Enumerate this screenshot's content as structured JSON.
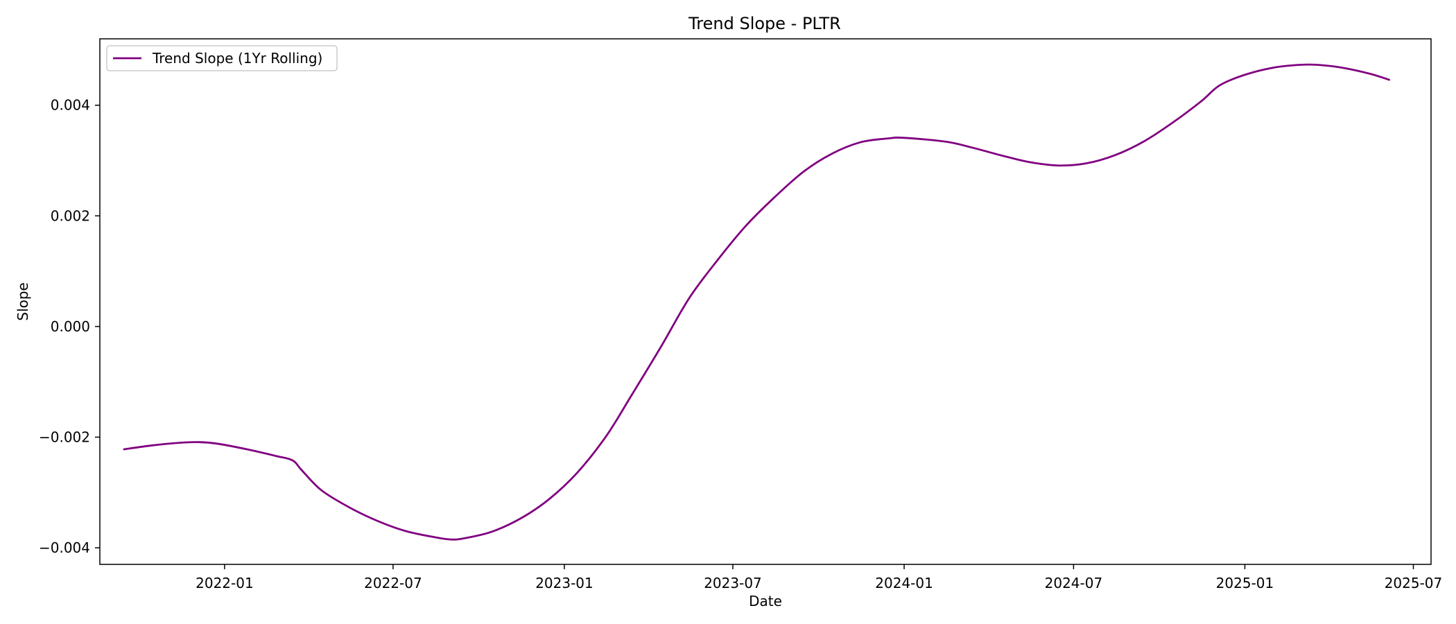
{
  "chart_data": {
    "type": "line",
    "title": "Trend Slope - PLTR",
    "xlabel": "Date",
    "ylabel": "Slope",
    "x_axis_type": "date",
    "xlim": [
      "2021-08-20",
      "2025-07-20"
    ],
    "ylim": [
      -0.0043,
      0.0052
    ],
    "x_ticks": [
      {
        "date": "2022-01-01",
        "label": "2022-01"
      },
      {
        "date": "2022-07-01",
        "label": "2022-07"
      },
      {
        "date": "2023-01-01",
        "label": "2023-01"
      },
      {
        "date": "2023-07-01",
        "label": "2023-07"
      },
      {
        "date": "2024-01-01",
        "label": "2024-01"
      },
      {
        "date": "2024-07-01",
        "label": "2024-07"
      },
      {
        "date": "2025-01-01",
        "label": "2025-01"
      },
      {
        "date": "2025-07-01",
        "label": "2025-07"
      }
    ],
    "y_ticks": [
      {
        "value": -0.004,
        "label": "−0.004"
      },
      {
        "value": -0.002,
        "label": "−0.002"
      },
      {
        "value": 0.0,
        "label": "0.000"
      },
      {
        "value": 0.002,
        "label": "0.002"
      },
      {
        "value": 0.004,
        "label": "0.004"
      }
    ],
    "grid": false,
    "legend": {
      "placement": "top-left"
    },
    "series": [
      {
        "name": "Trend Slope (1Yr Rolling)",
        "color": "#800080",
        "points": [
          {
            "x": "2021-09-15",
            "y": -0.00222
          },
          {
            "x": "2021-10-15",
            "y": -0.00215
          },
          {
            "x": "2021-11-15",
            "y": -0.0021
          },
          {
            "x": "2021-12-05",
            "y": -0.00209
          },
          {
            "x": "2021-12-25",
            "y": -0.00212
          },
          {
            "x": "2022-01-25",
            "y": -0.00222
          },
          {
            "x": "2022-02-25",
            "y": -0.00234
          },
          {
            "x": "2022-03-15",
            "y": -0.00242
          },
          {
            "x": "2022-03-25",
            "y": -0.0026
          },
          {
            "x": "2022-04-15",
            "y": -0.00296
          },
          {
            "x": "2022-05-15",
            "y": -0.00327
          },
          {
            "x": "2022-06-15",
            "y": -0.00352
          },
          {
            "x": "2022-07-15",
            "y": -0.0037
          },
          {
            "x": "2022-08-15",
            "y": -0.00381
          },
          {
            "x": "2022-09-01",
            "y": -0.00385
          },
          {
            "x": "2022-09-15",
            "y": -0.00383
          },
          {
            "x": "2022-10-15",
            "y": -0.00371
          },
          {
            "x": "2022-11-15",
            "y": -0.00347
          },
          {
            "x": "2022-12-15",
            "y": -0.00313
          },
          {
            "x": "2023-01-15",
            "y": -0.00264
          },
          {
            "x": "2023-02-15",
            "y": -0.00198
          },
          {
            "x": "2023-03-15",
            "y": -0.00122
          },
          {
            "x": "2023-04-15",
            "y": -0.00036
          },
          {
            "x": "2023-05-15",
            "y": 0.00051
          },
          {
            "x": "2023-06-15",
            "y": 0.00121
          },
          {
            "x": "2023-07-15",
            "y": 0.00182
          },
          {
            "x": "2023-08-15",
            "y": 0.00234
          },
          {
            "x": "2023-09-15",
            "y": 0.0028
          },
          {
            "x": "2023-10-15",
            "y": 0.00312
          },
          {
            "x": "2023-11-15",
            "y": 0.00333
          },
          {
            "x": "2023-12-15",
            "y": 0.0034
          },
          {
            "x": "2024-01-01",
            "y": 0.00341
          },
          {
            "x": "2024-02-15",
            "y": 0.00334
          },
          {
            "x": "2024-03-15",
            "y": 0.00323
          },
          {
            "x": "2024-04-15",
            "y": 0.00309
          },
          {
            "x": "2024-05-15",
            "y": 0.00297
          },
          {
            "x": "2024-06-15",
            "y": 0.00291
          },
          {
            "x": "2024-07-15",
            "y": 0.00295
          },
          {
            "x": "2024-08-15",
            "y": 0.0031
          },
          {
            "x": "2024-09-15",
            "y": 0.00335
          },
          {
            "x": "2024-10-15",
            "y": 0.00368
          },
          {
            "x": "2024-11-15",
            "y": 0.00407
          },
          {
            "x": "2024-12-05",
            "y": 0.00436
          },
          {
            "x": "2025-01-01",
            "y": 0.00455
          },
          {
            "x": "2025-02-01",
            "y": 0.00468
          },
          {
            "x": "2025-03-01",
            "y": 0.00473
          },
          {
            "x": "2025-03-20",
            "y": 0.00473
          },
          {
            "x": "2025-04-15",
            "y": 0.00468
          },
          {
            "x": "2025-05-15",
            "y": 0.00457
          },
          {
            "x": "2025-06-05",
            "y": 0.00446
          }
        ]
      }
    ]
  }
}
